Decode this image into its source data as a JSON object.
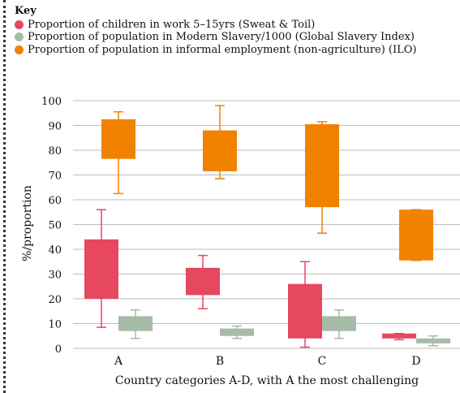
{
  "legend": {
    "title": "Key",
    "items": [
      {
        "label": "Proportion of children in work 5–15yrs (Sweat & Toil)",
        "color": "#e5485f"
      },
      {
        "label": "Proportion of population in Modern Slavery/1000 (Global Slavery Index)",
        "color": "#a6bba8"
      },
      {
        "label": "Proportion of population in informal employment (non-agriculture) (ILO)",
        "color": "#f08200"
      }
    ]
  },
  "chart_data": {
    "type": "boxplot",
    "categories": [
      "A",
      "B",
      "C",
      "D"
    ],
    "xlabel": "Country categories A-D, with A the most challenging",
    "ylabel": "%/proportion",
    "ylim": [
      0,
      100
    ],
    "yticks": [
      0,
      10,
      20,
      30,
      40,
      50,
      60,
      70,
      80,
      90,
      100
    ],
    "grid": "horizontal",
    "legend_position": "top-left",
    "series": [
      {
        "name": "Proportion of children in work 5–15yrs (Sweat & Toil)",
        "color": "#e5485f",
        "boxes": [
          {
            "min": 8.5,
            "q1": 20,
            "q3": 44,
            "max": 56
          },
          {
            "min": 16,
            "q1": 21.5,
            "q3": 32.5,
            "max": 37.5
          },
          {
            "min": 0.5,
            "q1": 4,
            "q3": 26,
            "max": 35
          },
          {
            "min": 3.5,
            "q1": 4,
            "q3": 6,
            "max": 6
          }
        ]
      },
      {
        "name": "Proportion of population in Modern Slavery/1000 (Global Slavery Index)",
        "color": "#a6bba8",
        "boxes": [
          {
            "min": 4,
            "q1": 7,
            "q3": 13,
            "max": 15.5
          },
          {
            "min": 4,
            "q1": 5,
            "q3": 8,
            "max": 9
          },
          {
            "min": 4,
            "q1": 7,
            "q3": 13,
            "max": 15.5
          },
          {
            "min": 1,
            "q1": 2,
            "q3": 4,
            "max": 5
          }
        ]
      },
      {
        "name": "Proportion of population in informal employment (non-agriculture) (ILO)",
        "color": "#f08200",
        "boxes": [
          {
            "min": 62.5,
            "q1": 76.5,
            "q3": 92.5,
            "max": 95.5
          },
          {
            "min": 68.5,
            "q1": 71.5,
            "q3": 88,
            "max": 98
          },
          {
            "min": 46.5,
            "q1": 57,
            "q3": 90.5,
            "max": 91.5
          },
          {
            "min": 35.5,
            "q1": 35.5,
            "q3": 56,
            "max": 56
          }
        ]
      }
    ]
  }
}
